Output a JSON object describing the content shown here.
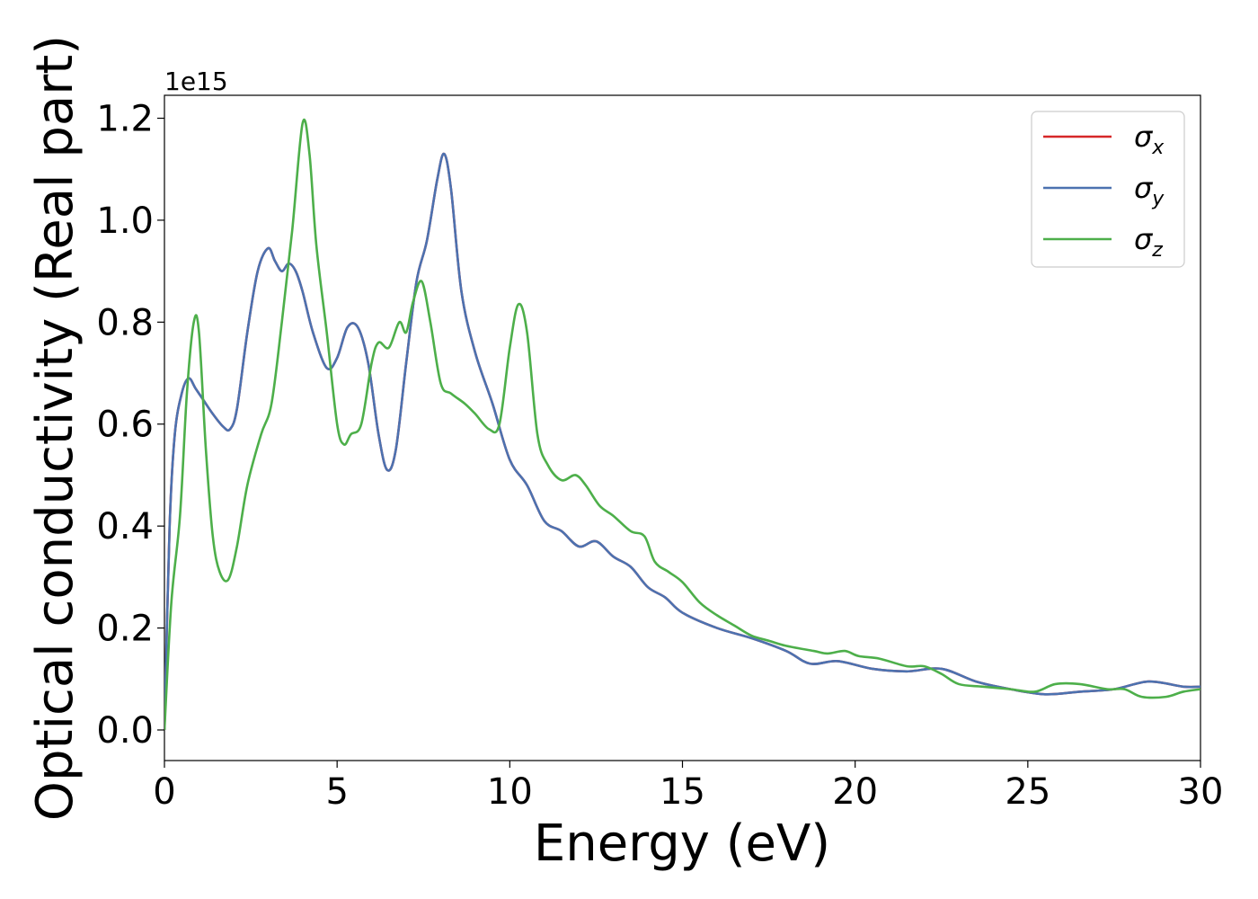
{
  "chart_data": {
    "type": "line",
    "xlabel": "Energy (eV)",
    "ylabel": "Optical conductivity (Real part)",
    "y_offset_text": "1e15",
    "xlim": [
      0,
      30
    ],
    "ylim": [
      -0.06,
      1.245
    ],
    "x_ticks": [
      0,
      5,
      10,
      15,
      20,
      25,
      30
    ],
    "x_tick_labels": [
      "0",
      "5",
      "10",
      "15",
      "20",
      "25",
      "30"
    ],
    "y_ticks": [
      0.0,
      0.2,
      0.4,
      0.6,
      0.8,
      1.0,
      1.2
    ],
    "y_tick_labels": [
      "0.0",
      "0.2",
      "0.4",
      "0.6",
      "0.8",
      "1.0",
      "1.2"
    ],
    "grid": false,
    "legend_position": "top-right",
    "series": [
      {
        "name": "σx",
        "name_base": "σ",
        "name_sub": "x",
        "color": "#d62728",
        "x": [
          0,
          0.15,
          0.3,
          0.5,
          0.7,
          0.9,
          1.1,
          1.4,
          1.7,
          1.9,
          2.1,
          2.4,
          2.7,
          3.0,
          3.2,
          3.4,
          3.6,
          3.8,
          4.0,
          4.3,
          4.7,
          5.0,
          5.3,
          5.6,
          5.9,
          6.2,
          6.45,
          6.7,
          7.0,
          7.3,
          7.6,
          7.9,
          8.1,
          8.3,
          8.6,
          9.0,
          9.5,
          10.0,
          10.5,
          11.0,
          11.5,
          12.0,
          12.5,
          13.0,
          13.5,
          14.0,
          14.5,
          15.0,
          16.0,
          17.0,
          18.0,
          18.7,
          19.5,
          20.5,
          21.5,
          22.5,
          23.5,
          24.5,
          25.5,
          26.5,
          27.5,
          28.5,
          29.5,
          30.0
        ],
        "y": [
          0.0,
          0.4,
          0.58,
          0.66,
          0.69,
          0.67,
          0.65,
          0.62,
          0.595,
          0.59,
          0.63,
          0.78,
          0.9,
          0.945,
          0.92,
          0.9,
          0.915,
          0.9,
          0.86,
          0.78,
          0.71,
          0.73,
          0.79,
          0.79,
          0.72,
          0.58,
          0.51,
          0.55,
          0.72,
          0.88,
          0.96,
          1.08,
          1.13,
          1.06,
          0.86,
          0.74,
          0.64,
          0.53,
          0.48,
          0.41,
          0.39,
          0.36,
          0.37,
          0.34,
          0.32,
          0.28,
          0.26,
          0.23,
          0.2,
          0.18,
          0.155,
          0.13,
          0.135,
          0.12,
          0.115,
          0.12,
          0.095,
          0.08,
          0.07,
          0.075,
          0.08,
          0.095,
          0.085,
          0.085
        ]
      },
      {
        "name": "σy",
        "name_base": "σ",
        "name_sub": "y",
        "color": "#4c72b0",
        "x": [
          0,
          0.15,
          0.3,
          0.5,
          0.7,
          0.9,
          1.1,
          1.4,
          1.7,
          1.9,
          2.1,
          2.4,
          2.7,
          3.0,
          3.2,
          3.4,
          3.6,
          3.8,
          4.0,
          4.3,
          4.7,
          5.0,
          5.3,
          5.6,
          5.9,
          6.2,
          6.45,
          6.7,
          7.0,
          7.3,
          7.6,
          7.9,
          8.1,
          8.3,
          8.6,
          9.0,
          9.5,
          10.0,
          10.5,
          11.0,
          11.5,
          12.0,
          12.5,
          13.0,
          13.5,
          14.0,
          14.5,
          15.0,
          16.0,
          17.0,
          18.0,
          18.7,
          19.5,
          20.5,
          21.5,
          22.5,
          23.5,
          24.5,
          25.5,
          26.5,
          27.5,
          28.5,
          29.5,
          30.0
        ],
        "y": [
          0.0,
          0.4,
          0.58,
          0.66,
          0.69,
          0.67,
          0.65,
          0.62,
          0.595,
          0.59,
          0.63,
          0.78,
          0.9,
          0.945,
          0.92,
          0.9,
          0.915,
          0.9,
          0.86,
          0.78,
          0.71,
          0.73,
          0.79,
          0.79,
          0.72,
          0.58,
          0.51,
          0.55,
          0.72,
          0.88,
          0.96,
          1.08,
          1.13,
          1.06,
          0.86,
          0.74,
          0.64,
          0.53,
          0.48,
          0.41,
          0.39,
          0.36,
          0.37,
          0.34,
          0.32,
          0.28,
          0.26,
          0.23,
          0.2,
          0.18,
          0.155,
          0.13,
          0.135,
          0.12,
          0.115,
          0.12,
          0.095,
          0.08,
          0.07,
          0.075,
          0.08,
          0.095,
          0.085,
          0.085
        ]
      },
      {
        "name": "σz",
        "name_base": "σ",
        "name_sub": "z",
        "color": "#4daf4a",
        "x": [
          0,
          0.2,
          0.45,
          0.65,
          0.85,
          1.0,
          1.2,
          1.4,
          1.6,
          1.85,
          2.1,
          2.4,
          2.8,
          3.1,
          3.4,
          3.7,
          4.0,
          4.2,
          4.4,
          4.7,
          5.0,
          5.2,
          5.4,
          5.7,
          6.0,
          6.2,
          6.5,
          6.8,
          7.0,
          7.2,
          7.45,
          7.7,
          8.0,
          8.3,
          8.7,
          9.0,
          9.4,
          9.7,
          10.0,
          10.25,
          10.5,
          10.8,
          11.1,
          11.5,
          11.9,
          12.2,
          12.6,
          13.0,
          13.5,
          13.9,
          14.2,
          14.6,
          15.0,
          15.5,
          16.0,
          16.5,
          17.0,
          17.5,
          18.0,
          18.8,
          19.2,
          19.7,
          20.1,
          20.7,
          21.5,
          22.0,
          22.5,
          23.0,
          23.7,
          24.5,
          25.2,
          25.8,
          26.5,
          27.3,
          27.8,
          28.3,
          29.0,
          29.5,
          30.0
        ],
        "y": [
          0.0,
          0.25,
          0.42,
          0.66,
          0.8,
          0.78,
          0.55,
          0.38,
          0.31,
          0.295,
          0.36,
          0.48,
          0.58,
          0.64,
          0.8,
          0.98,
          1.19,
          1.13,
          0.95,
          0.78,
          0.6,
          0.56,
          0.58,
          0.6,
          0.72,
          0.76,
          0.75,
          0.8,
          0.78,
          0.84,
          0.88,
          0.8,
          0.68,
          0.66,
          0.64,
          0.62,
          0.59,
          0.6,
          0.75,
          0.835,
          0.78,
          0.58,
          0.52,
          0.49,
          0.5,
          0.48,
          0.44,
          0.42,
          0.39,
          0.38,
          0.33,
          0.31,
          0.29,
          0.25,
          0.225,
          0.205,
          0.185,
          0.175,
          0.165,
          0.155,
          0.15,
          0.155,
          0.145,
          0.14,
          0.125,
          0.125,
          0.11,
          0.09,
          0.085,
          0.08,
          0.075,
          0.09,
          0.09,
          0.08,
          0.08,
          0.065,
          0.065,
          0.075,
          0.08
        ]
      }
    ]
  }
}
